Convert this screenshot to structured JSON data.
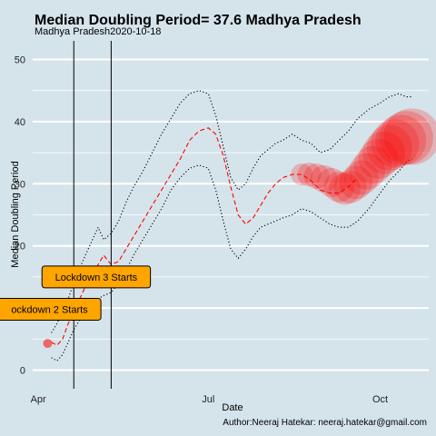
{
  "chart_data": {
    "type": "line",
    "title": "Median Doubling Period=  37.6 Madhya Pradesh",
    "subtitle": "Madhya Pradesh2020-10-18",
    "xlabel": "Date",
    "ylabel": "Median Doubling Period",
    "caption": "Author:Neeraj Hatekar: neeraj.hatekar@gmail.com",
    "xlim": [
      "2020-03-29",
      "2020-10-27"
    ],
    "ylim": [
      -3,
      53
    ],
    "x_ticks": [
      {
        "date": "2020-04-01",
        "label": "Apr"
      },
      {
        "date": "2020-07-01",
        "label": "Jul"
      },
      {
        "date": "2020-10-01",
        "label": "Oct"
      }
    ],
    "y_ticks": [
      0,
      10,
      20,
      30,
      40,
      50
    ],
    "grid": true,
    "series": [
      {
        "role": "median",
        "color": "#ff0000",
        "style": "dashed",
        "x": [
          "2020-04-08",
          "2020-04-11",
          "2020-04-14",
          "2020-04-17",
          "2020-04-20",
          "2020-04-24",
          "2020-04-27",
          "2020-04-30",
          "2020-05-03",
          "2020-05-06",
          "2020-05-10",
          "2020-05-14",
          "2020-05-18",
          "2020-05-22",
          "2020-05-27",
          "2020-06-01",
          "2020-06-06",
          "2020-06-11",
          "2020-06-16",
          "2020-06-21",
          "2020-06-26",
          "2020-07-01",
          "2020-07-05",
          "2020-07-09",
          "2020-07-13",
          "2020-07-17",
          "2020-07-21",
          "2020-07-25",
          "2020-07-29",
          "2020-08-02",
          "2020-08-06",
          "2020-08-10",
          "2020-08-15",
          "2020-08-20",
          "2020-08-25",
          "2020-08-30",
          "2020-09-04",
          "2020-09-09",
          "2020-09-14",
          "2020-09-19"
        ],
        "y": [
          4.5,
          4.0,
          5.0,
          7.5,
          9.5,
          12.0,
          14.0,
          15.0,
          17.0,
          18.5,
          17.0,
          17.5,
          19.5,
          21.5,
          24.0,
          26.5,
          29.0,
          31.5,
          34.0,
          37.0,
          38.5,
          39.0,
          38.0,
          34.5,
          29.5,
          25.0,
          23.5,
          24.5,
          26.5,
          28.5,
          30.0,
          31.0,
          31.5,
          31.5,
          30.5,
          29.0,
          28.5,
          28.5,
          29.5,
          31.0
        ]
      },
      {
        "role": "upper",
        "color": "#000000",
        "style": "dotted",
        "x": [
          "2020-04-08",
          "2020-04-11",
          "2020-04-14",
          "2020-04-17",
          "2020-04-20",
          "2020-04-24",
          "2020-04-27",
          "2020-04-30",
          "2020-05-03",
          "2020-05-06",
          "2020-05-10",
          "2020-05-14",
          "2020-05-18",
          "2020-05-22",
          "2020-05-27",
          "2020-06-01",
          "2020-06-06",
          "2020-06-11",
          "2020-06-16",
          "2020-06-21",
          "2020-06-26",
          "2020-07-01",
          "2020-07-05",
          "2020-07-09",
          "2020-07-13",
          "2020-07-17",
          "2020-07-21",
          "2020-07-25",
          "2020-07-29",
          "2020-08-02",
          "2020-08-06",
          "2020-08-10",
          "2020-08-15",
          "2020-08-20",
          "2020-08-25",
          "2020-08-30",
          "2020-09-04",
          "2020-09-09",
          "2020-09-14",
          "2020-09-19",
          "2020-09-25",
          "2020-10-01",
          "2020-10-06",
          "2020-10-11",
          "2020-10-15",
          "2020-10-18"
        ],
        "y": [
          6.0,
          7.5,
          9.5,
          11.5,
          14.0,
          17.0,
          19.0,
          21.0,
          23.0,
          21.0,
          22.0,
          24.0,
          27.0,
          29.5,
          32.0,
          35.0,
          38.0,
          40.5,
          43.0,
          44.5,
          45.0,
          44.5,
          41.0,
          36.0,
          31.0,
          29.0,
          30.0,
          32.5,
          34.5,
          35.5,
          36.5,
          37.0,
          38.0,
          37.0,
          36.5,
          35.0,
          35.5,
          37.0,
          38.5,
          40.5,
          42.0,
          43.0,
          44.0,
          44.5,
          44.0,
          44.0
        ]
      },
      {
        "role": "lower",
        "color": "#000000",
        "style": "dotted",
        "x": [
          "2020-04-08",
          "2020-04-11",
          "2020-04-14",
          "2020-04-17",
          "2020-04-20",
          "2020-04-24",
          "2020-04-27",
          "2020-04-30",
          "2020-05-03",
          "2020-05-06",
          "2020-05-10",
          "2020-05-14",
          "2020-05-18",
          "2020-05-22",
          "2020-05-27",
          "2020-06-01",
          "2020-06-06",
          "2020-06-11",
          "2020-06-16",
          "2020-06-21",
          "2020-06-26",
          "2020-07-01",
          "2020-07-05",
          "2020-07-09",
          "2020-07-13",
          "2020-07-17",
          "2020-07-21",
          "2020-07-25",
          "2020-07-29",
          "2020-08-02",
          "2020-08-06",
          "2020-08-10",
          "2020-08-15",
          "2020-08-20",
          "2020-08-25",
          "2020-08-30",
          "2020-09-04",
          "2020-09-09",
          "2020-09-14",
          "2020-09-19",
          "2020-09-25",
          "2020-10-01",
          "2020-10-06",
          "2020-10-11",
          "2020-10-15",
          "2020-10-18"
        ],
        "y": [
          2.0,
          1.5,
          2.5,
          4.5,
          6.5,
          8.5,
          10.0,
          11.0,
          11.5,
          12.0,
          12.5,
          14.0,
          16.0,
          18.5,
          21.0,
          23.5,
          26.0,
          29.0,
          31.0,
          32.5,
          33.0,
          32.5,
          29.0,
          24.0,
          19.5,
          18.0,
          19.5,
          21.5,
          23.0,
          23.5,
          24.0,
          24.5,
          25.0,
          26.0,
          25.5,
          24.5,
          23.5,
          23.0,
          23.0,
          24.0,
          26.0,
          28.5,
          30.5,
          32.0,
          33.5,
          34.0
        ]
      }
    ],
    "bubbles": {
      "color": "#ff0000",
      "first": {
        "date": "2020-04-06",
        "value": 4.3,
        "size": 1
      },
      "trail": {
        "dates": [
          "2020-08-20",
          "2020-08-24",
          "2020-08-28",
          "2020-09-01",
          "2020-09-05",
          "2020-09-09",
          "2020-09-12",
          "2020-09-15",
          "2020-09-18",
          "2020-09-21",
          "2020-09-24",
          "2020-09-27",
          "2020-09-30",
          "2020-10-03",
          "2020-10-06",
          "2020-10-09",
          "2020-10-12",
          "2020-10-15",
          "2020-10-18"
        ],
        "values": [
          31.5,
          31.5,
          31.2,
          30.8,
          30.2,
          29.5,
          29.2,
          29.5,
          30.2,
          31.0,
          32.0,
          33.0,
          34.0,
          35.0,
          35.8,
          36.5,
          37.0,
          37.4,
          37.6
        ],
        "sizes": [
          2.0,
          2.2,
          2.4,
          2.6,
          2.8,
          3.0,
          3.1,
          3.2,
          3.3,
          3.4,
          3.6,
          3.8,
          4.0,
          4.3,
          4.6,
          4.9,
          5.2,
          5.5,
          5.8
        ]
      }
    },
    "vlines": [
      {
        "date": "2020-04-20",
        "label": "Lockdown 3 Starts",
        "label_date": "2020-05-02",
        "label_value": 15.0
      },
      {
        "date": "2020-05-10",
        "label": "ockdown 2 Starts",
        "label_date": "2020-04-07",
        "label_value": 9.8
      }
    ],
    "annotation_color": "#ffa500"
  }
}
